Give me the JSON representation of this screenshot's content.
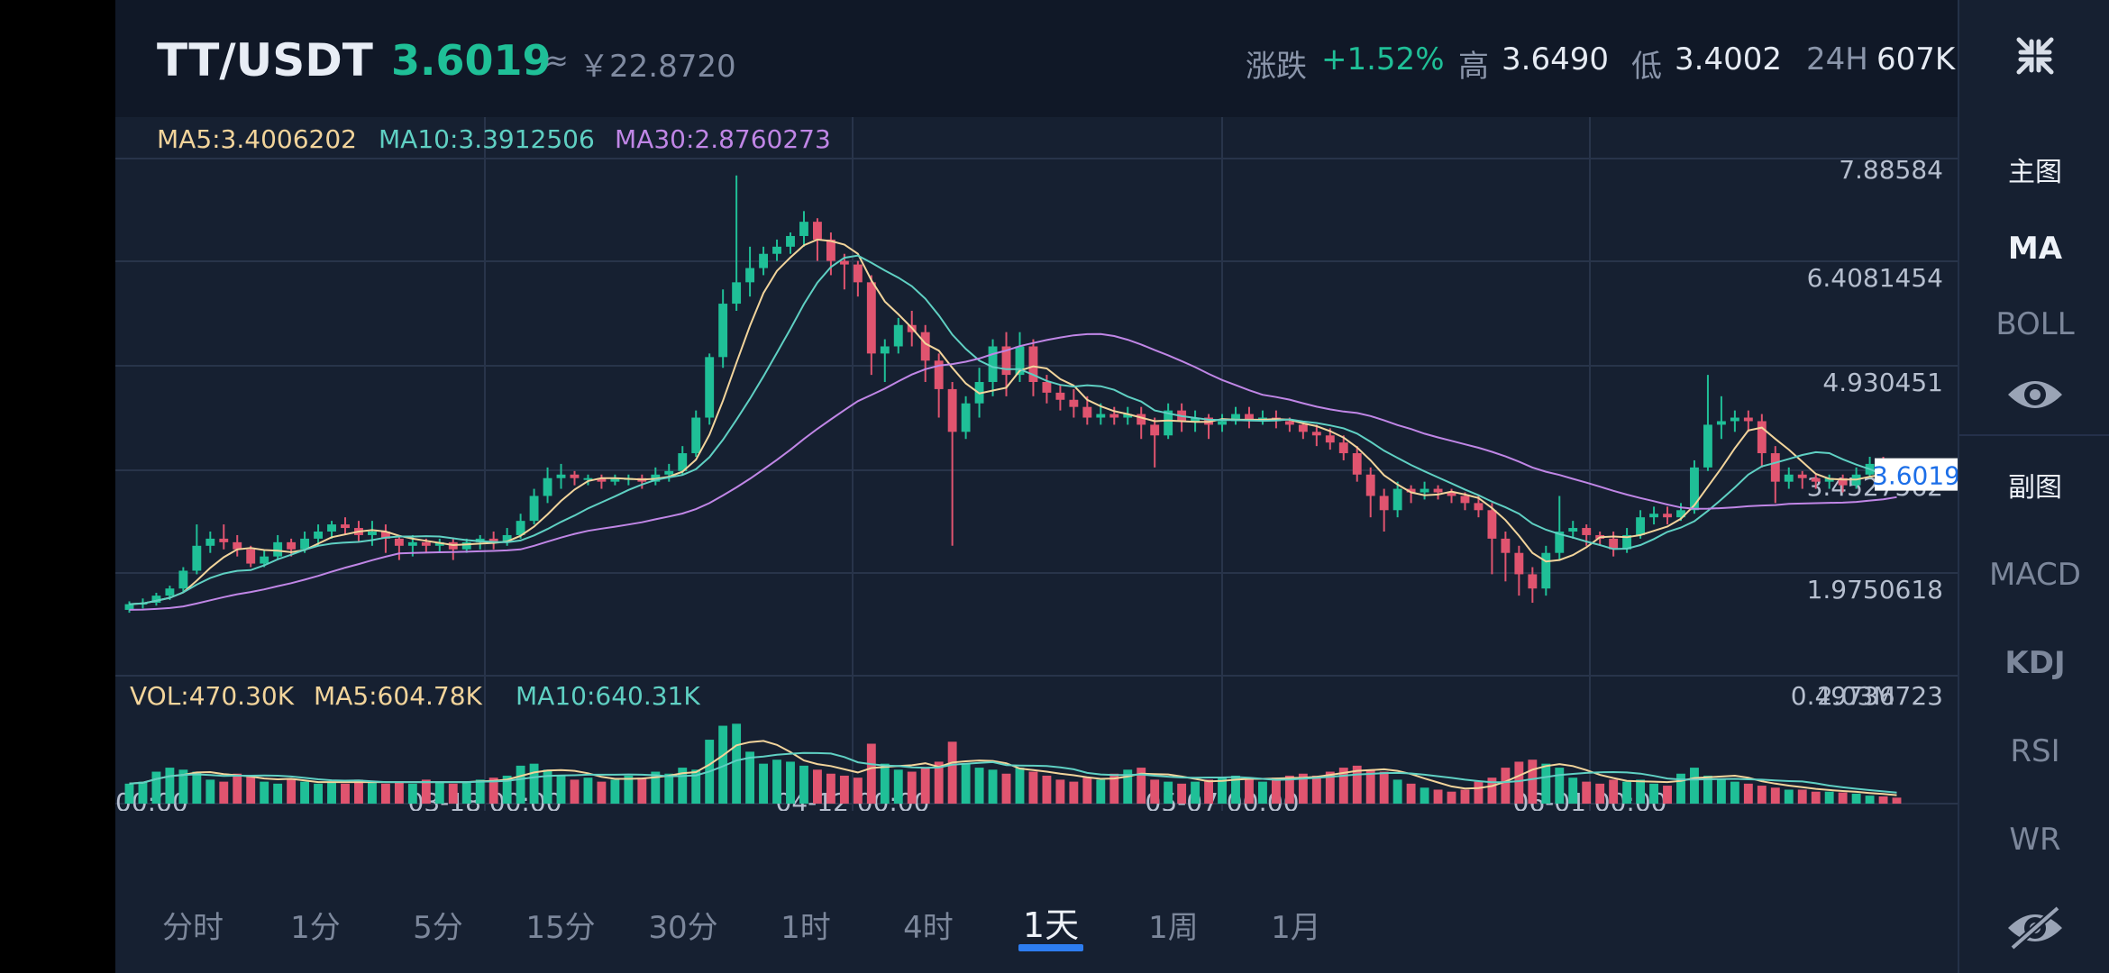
{
  "header": {
    "pair": "TT/USDT",
    "price": "3.6019",
    "approx_symbol": "≈",
    "cny_price": "￥22.8720",
    "change_label": "涨跌",
    "change_value": "+1.52%",
    "high_label": "高",
    "high_value": "3.6490",
    "low_label": "低",
    "low_value": "3.4002",
    "vol_label": "24H",
    "vol_value": "607K"
  },
  "indicators": {
    "ma5": "MA5:3.4006202",
    "ma10": "MA10:3.3912506",
    "ma30": "MA30:2.8760273",
    "vol": "VOL:470.30K",
    "vol_ma5": "MA5:604.78K",
    "vol_ma10": "MA10:640.31K",
    "vol_max": "2.03M",
    "current_price_tag": "3.6019"
  },
  "colors": {
    "up": "#1fbf97",
    "down": "#e0546f",
    "ma5": "#f2d49b",
    "ma10": "#5fd0c3",
    "ma30": "#c086e6"
  },
  "sidebar": {
    "collapse_icon": "collapse-arrows-icon",
    "main_label": "主图",
    "ma": "MA",
    "boll": "BOLL",
    "eye_icon": "eye-icon",
    "sub_label": "副图",
    "macd": "MACD",
    "kdj": "KDJ",
    "rsi": "RSI",
    "wr": "WR",
    "hide_icon": "eye-slash-icon"
  },
  "periods": [
    "分时",
    "1分",
    "5分",
    "15分",
    "30分",
    "1时",
    "4时",
    "1天",
    "1周",
    "1月"
  ],
  "active_period": "1天",
  "chart_data": {
    "type": "candlestick",
    "y_ticks": [
      "7.88584",
      "6.4081454",
      "4.930451",
      "3.4527562",
      "1.9750618",
      "0.49736723"
    ],
    "x_ticks": [
      "00:00",
      "03-18 00:00",
      "04-12 00:00",
      "05-07 00:00",
      "06-01 00:00"
    ],
    "ylim": [
      0.49736723,
      7.88584
    ],
    "volume_max": 2030000,
    "candles": [
      [
        1.7,
        1.78,
        1.66,
        1.82
      ],
      [
        1.78,
        1.8,
        1.72,
        1.86
      ],
      [
        1.8,
        1.9,
        1.76,
        1.94
      ],
      [
        1.9,
        2.0,
        1.84,
        2.04
      ],
      [
        2.0,
        2.25,
        1.95,
        2.3
      ],
      [
        2.25,
        2.6,
        2.2,
        2.9
      ],
      [
        2.6,
        2.7,
        2.5,
        2.8
      ],
      [
        2.7,
        2.65,
        2.55,
        2.9
      ],
      [
        2.65,
        2.55,
        2.45,
        2.75
      ],
      [
        2.55,
        2.35,
        2.3,
        2.6
      ],
      [
        2.35,
        2.45,
        2.3,
        2.55
      ],
      [
        2.45,
        2.65,
        2.4,
        2.75
      ],
      [
        2.65,
        2.55,
        2.45,
        2.7
      ],
      [
        2.55,
        2.7,
        2.5,
        2.8
      ],
      [
        2.7,
        2.8,
        2.6,
        2.9
      ],
      [
        2.8,
        2.9,
        2.7,
        2.95
      ],
      [
        2.9,
        2.85,
        2.75,
        3.0
      ],
      [
        2.85,
        2.75,
        2.65,
        2.95
      ],
      [
        2.75,
        2.8,
        2.6,
        2.95
      ],
      [
        2.8,
        2.7,
        2.5,
        2.9
      ],
      [
        2.7,
        2.6,
        2.4,
        2.75
      ],
      [
        2.6,
        2.65,
        2.45,
        2.75
      ],
      [
        2.65,
        2.6,
        2.5,
        2.7
      ],
      [
        2.6,
        2.65,
        2.5,
        2.7
      ],
      [
        2.65,
        2.55,
        2.4,
        2.7
      ],
      [
        2.55,
        2.65,
        2.5,
        2.7
      ],
      [
        2.65,
        2.7,
        2.55,
        2.75
      ],
      [
        2.7,
        2.65,
        2.55,
        2.8
      ],
      [
        2.65,
        2.75,
        2.6,
        2.85
      ],
      [
        2.75,
        2.95,
        2.7,
        3.05
      ],
      [
        2.95,
        3.3,
        2.9,
        3.4
      ],
      [
        3.3,
        3.55,
        3.2,
        3.7
      ],
      [
        3.55,
        3.6,
        3.4,
        3.75
      ],
      [
        3.6,
        3.55,
        3.45,
        3.65
      ],
      [
        3.55,
        3.55,
        3.45,
        3.6
      ],
      [
        3.55,
        3.5,
        3.4,
        3.6
      ],
      [
        3.5,
        3.55,
        3.45,
        3.6
      ],
      [
        3.55,
        3.55,
        3.45,
        3.6
      ],
      [
        3.55,
        3.5,
        3.4,
        3.6
      ],
      [
        3.5,
        3.6,
        3.45,
        3.7
      ],
      [
        3.6,
        3.65,
        3.5,
        3.75
      ],
      [
        3.65,
        3.9,
        3.6,
        4.0
      ],
      [
        3.9,
        4.4,
        3.85,
        4.5
      ],
      [
        4.4,
        5.25,
        4.3,
        5.3
      ],
      [
        5.25,
        6.0,
        5.1,
        6.2
      ],
      [
        6.0,
        6.3,
        5.9,
        7.8
      ],
      [
        6.3,
        6.5,
        6.1,
        6.8
      ],
      [
        6.5,
        6.7,
        6.4,
        6.8
      ],
      [
        6.7,
        6.8,
        6.6,
        6.9
      ],
      [
        6.8,
        6.95,
        6.7,
        7.0
      ],
      [
        6.95,
        7.15,
        6.8,
        7.3
      ],
      [
        7.15,
        6.9,
        6.6,
        7.2
      ],
      [
        6.9,
        6.6,
        6.4,
        7.0
      ],
      [
        6.6,
        6.55,
        6.2,
        6.7
      ],
      [
        6.55,
        6.3,
        6.1,
        6.6
      ],
      [
        6.3,
        5.3,
        5.0,
        6.4
      ],
      [
        5.3,
        5.4,
        4.9,
        5.5
      ],
      [
        5.4,
        5.7,
        5.3,
        5.8
      ],
      [
        5.7,
        5.6,
        5.4,
        5.9
      ],
      [
        5.6,
        5.2,
        4.9,
        5.7
      ],
      [
        5.2,
        4.8,
        4.4,
        5.3
      ],
      [
        4.8,
        4.2,
        2.6,
        4.9
      ],
      [
        4.2,
        4.6,
        4.1,
        4.7
      ],
      [
        4.6,
        4.9,
        4.4,
        5.1
      ],
      [
        4.9,
        5.4,
        4.7,
        5.5
      ],
      [
        5.4,
        5.0,
        4.7,
        5.6
      ],
      [
        5.0,
        5.4,
        4.9,
        5.6
      ],
      [
        5.4,
        4.9,
        4.7,
        5.5
      ],
      [
        4.9,
        4.75,
        4.6,
        5.0
      ],
      [
        4.75,
        4.65,
        4.5,
        4.85
      ],
      [
        4.65,
        4.55,
        4.4,
        4.8
      ],
      [
        4.55,
        4.4,
        4.3,
        4.7
      ],
      [
        4.4,
        4.45,
        4.3,
        4.6
      ],
      [
        4.45,
        4.4,
        4.3,
        4.55
      ],
      [
        4.4,
        4.45,
        4.3,
        4.55
      ],
      [
        4.45,
        4.3,
        4.1,
        4.55
      ],
      [
        4.3,
        4.15,
        3.7,
        4.4
      ],
      [
        4.15,
        4.5,
        4.1,
        4.6
      ],
      [
        4.5,
        4.35,
        4.2,
        4.6
      ],
      [
        4.35,
        4.4,
        4.2,
        4.5
      ],
      [
        4.4,
        4.3,
        4.1,
        4.45
      ],
      [
        4.3,
        4.35,
        4.2,
        4.45
      ],
      [
        4.35,
        4.45,
        4.3,
        4.55
      ],
      [
        4.45,
        4.35,
        4.25,
        4.55
      ],
      [
        4.35,
        4.4,
        4.3,
        4.5
      ],
      [
        4.4,
        4.35,
        4.25,
        4.5
      ],
      [
        4.35,
        4.3,
        4.2,
        4.4
      ],
      [
        4.3,
        4.2,
        4.1,
        4.35
      ],
      [
        4.2,
        4.15,
        4.0,
        4.3
      ],
      [
        4.15,
        4.05,
        3.95,
        4.25
      ],
      [
        4.05,
        3.9,
        3.8,
        4.15
      ],
      [
        3.9,
        3.6,
        3.5,
        4.0
      ],
      [
        3.6,
        3.3,
        3.0,
        3.7
      ],
      [
        3.3,
        3.1,
        2.8,
        3.4
      ],
      [
        3.1,
        3.4,
        3.0,
        3.5
      ],
      [
        3.4,
        3.35,
        3.2,
        3.45
      ],
      [
        3.35,
        3.4,
        3.25,
        3.5
      ],
      [
        3.4,
        3.35,
        3.25,
        3.45
      ],
      [
        3.35,
        3.3,
        3.2,
        3.4
      ],
      [
        3.3,
        3.2,
        3.1,
        3.35
      ],
      [
        3.2,
        3.1,
        3.0,
        3.3
      ],
      [
        3.1,
        2.7,
        2.2,
        3.2
      ],
      [
        2.7,
        2.5,
        2.1,
        2.8
      ],
      [
        2.5,
        2.2,
        1.9,
        2.6
      ],
      [
        2.2,
        2.0,
        1.8,
        2.3
      ],
      [
        2.0,
        2.5,
        1.9,
        2.6
      ],
      [
        2.5,
        2.8,
        2.4,
        3.3
      ],
      [
        2.8,
        2.85,
        2.7,
        2.95
      ],
      [
        2.85,
        2.75,
        2.6,
        2.9
      ],
      [
        2.75,
        2.7,
        2.6,
        2.8
      ],
      [
        2.7,
        2.55,
        2.45,
        2.8
      ],
      [
        2.55,
        2.75,
        2.5,
        2.85
      ],
      [
        2.75,
        3.0,
        2.7,
        3.1
      ],
      [
        3.0,
        3.05,
        2.9,
        3.15
      ],
      [
        3.05,
        3.0,
        2.9,
        3.15
      ],
      [
        3.0,
        3.1,
        2.95,
        3.2
      ],
      [
        3.1,
        3.7,
        3.05,
        3.8
      ],
      [
        3.7,
        4.3,
        3.65,
        5.0
      ],
      [
        4.3,
        4.35,
        4.1,
        4.7
      ],
      [
        4.35,
        4.4,
        4.2,
        4.5
      ],
      [
        4.4,
        4.35,
        4.2,
        4.5
      ],
      [
        4.35,
        3.9,
        3.7,
        4.45
      ],
      [
        3.9,
        3.5,
        3.2,
        4.0
      ],
      [
        3.5,
        3.6,
        3.4,
        3.7
      ],
      [
        3.6,
        3.55,
        3.4,
        3.65
      ],
      [
        3.55,
        3.5,
        3.4,
        3.6
      ],
      [
        3.5,
        3.55,
        3.4,
        3.6
      ],
      [
        3.55,
        3.45,
        3.35,
        3.6
      ],
      [
        3.45,
        3.6,
        3.4,
        3.7
      ],
      [
        3.6,
        3.75,
        3.55,
        3.85
      ],
      [
        3.75,
        3.65,
        3.55,
        3.85
      ],
      [
        3.65,
        3.6,
        3.55,
        3.7
      ]
    ],
    "volume": [
      0.5,
      0.55,
      0.8,
      0.9,
      0.85,
      0.8,
      0.6,
      0.55,
      0.75,
      0.7,
      0.55,
      0.5,
      0.6,
      0.55,
      0.5,
      0.55,
      0.5,
      0.6,
      0.55,
      0.5,
      0.55,
      0.5,
      0.6,
      0.55,
      0.5,
      0.55,
      0.6,
      0.65,
      0.7,
      0.95,
      1.0,
      0.85,
      0.7,
      0.6,
      0.65,
      0.55,
      0.6,
      0.7,
      0.65,
      0.8,
      0.75,
      0.9,
      0.85,
      1.6,
      1.95,
      2.0,
      1.3,
      1.0,
      1.1,
      1.05,
      0.95,
      0.85,
      0.75,
      0.7,
      0.65,
      1.5,
      1.0,
      0.85,
      0.8,
      0.9,
      1.05,
      1.55,
      1.0,
      0.9,
      0.85,
      0.75,
      0.9,
      0.8,
      0.7,
      0.6,
      0.55,
      0.65,
      0.6,
      0.75,
      0.85,
      0.9,
      0.6,
      0.55,
      0.5,
      0.55,
      0.6,
      0.65,
      0.7,
      0.6,
      0.55,
      0.65,
      0.7,
      0.75,
      0.7,
      0.8,
      0.9,
      0.95,
      0.85,
      0.8,
      0.6,
      0.5,
      0.4,
      0.35,
      0.3,
      0.35,
      0.55,
      0.65,
      0.9,
      1.05,
      1.1,
      1.0,
      0.9,
      0.65,
      0.55,
      0.5,
      0.6,
      0.55,
      0.6,
      0.5,
      0.45,
      0.75,
      0.9,
      0.7,
      0.6,
      0.55,
      0.5,
      0.45,
      0.4,
      0.35,
      0.35,
      0.3,
      0.3,
      0.28,
      0.25,
      0.2,
      0.18,
      0.15
    ]
  }
}
